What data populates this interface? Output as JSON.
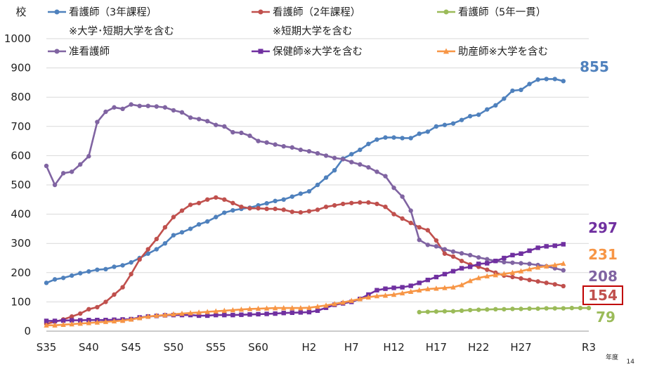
{
  "chart_data": {
    "type": "line",
    "ylabel": "校",
    "xlabel": "年度",
    "page_number": "14",
    "ylim": [
      0,
      1000
    ],
    "ytick_values": [
      0,
      100,
      200,
      300,
      400,
      500,
      600,
      700,
      800,
      900,
      1000
    ],
    "ytick_labels": [
      "0",
      "100",
      "200",
      "300",
      "400",
      "500",
      "600",
      "700",
      "800",
      "900",
      "1000"
    ],
    "xlim": [
      35,
      99
    ],
    "xtick_values": [
      35,
      40,
      45,
      50,
      55,
      60,
      66,
      71,
      76,
      81,
      86,
      91,
      99
    ],
    "xtick_labels": [
      "S35",
      "S40",
      "S45",
      "S50",
      "S55",
      "S60",
      "H2",
      "H7",
      "H12",
      "H17",
      "H22",
      "H27",
      "R3"
    ],
    "grid": "horizontal",
    "legend_position": "top",
    "series": [
      {
        "name": "看護師（3年課程）",
        "name_line2": "※大学･短期大学を含む",
        "color": "#4F81BD",
        "marker": "circle",
        "end_label": "855",
        "x_start": 35,
        "values": [
          165,
          177,
          182,
          190,
          198,
          204,
          210,
          212,
          220,
          225,
          235,
          250,
          265,
          280,
          300,
          328,
          338,
          350,
          365,
          375,
          390,
          405,
          413,
          418,
          422,
          430,
          437,
          445,
          450,
          460,
          470,
          478,
          500,
          525,
          550,
          590,
          605,
          620,
          640,
          655,
          662,
          662,
          660,
          660,
          675,
          682,
          700,
          705,
          710,
          722,
          735,
          740,
          758,
          772,
          795,
          822,
          825,
          845,
          860,
          862,
          862,
          855
        ]
      },
      {
        "name": "看護師（2年課程）",
        "name_line2": "※短期大学を含む",
        "color": "#C0504D",
        "marker": "circle",
        "end_label": "154",
        "x_start": 35,
        "values": [
          25,
          32,
          40,
          50,
          60,
          75,
          82,
          100,
          125,
          150,
          195,
          245,
          280,
          315,
          355,
          390,
          412,
          432,
          438,
          450,
          457,
          450,
          438,
          425,
          420,
          420,
          418,
          418,
          415,
          408,
          406,
          410,
          415,
          425,
          430,
          435,
          438,
          440,
          440,
          435,
          425,
          400,
          385,
          370,
          355,
          345,
          310,
          265,
          255,
          240,
          228,
          220,
          210,
          200,
          190,
          185,
          180,
          175,
          170,
          165,
          160,
          154
        ]
      },
      {
        "name": "看護師（5年一貫）",
        "color": "#9BBB59",
        "marker": "circle",
        "end_label": "79",
        "x_start": 79,
        "values": [
          65,
          66,
          67,
          68,
          68,
          70,
          72,
          73,
          74,
          75,
          75,
          76,
          76,
          77,
          77,
          78,
          78,
          78,
          79,
          79,
          79
        ]
      },
      {
        "name": "准看護師",
        "color": "#8064A2",
        "marker": "circle",
        "end_label": "208",
        "x_start": 35,
        "values": [
          565,
          500,
          540,
          545,
          570,
          598,
          715,
          750,
          765,
          760,
          775,
          770,
          770,
          768,
          765,
          755,
          748,
          730,
          725,
          718,
          705,
          700,
          680,
          678,
          668,
          650,
          645,
          638,
          632,
          628,
          620,
          615,
          608,
          600,
          592,
          588,
          578,
          570,
          560,
          545,
          530,
          490,
          460,
          412,
          312,
          295,
          290,
          280,
          272,
          266,
          260,
          252,
          246,
          240,
          236,
          234,
          232,
          230,
          226,
          222,
          215,
          208
        ]
      },
      {
        "name": "保健師※大学を含む",
        "color": "#7030A0",
        "marker": "square",
        "end_label": "297",
        "x_start": 35,
        "values": [
          35,
          35,
          36,
          37,
          37,
          38,
          38,
          38,
          39,
          40,
          41,
          47,
          50,
          52,
          54,
          55,
          55,
          55,
          53,
          53,
          55,
          55,
          55,
          56,
          57,
          58,
          59,
          60,
          62,
          63,
          64,
          65,
          70,
          80,
          90,
          95,
          100,
          110,
          125,
          140,
          145,
          148,
          150,
          155,
          165,
          175,
          185,
          195,
          205,
          215,
          220,
          230,
          232,
          240,
          250,
          260,
          265,
          275,
          285,
          290,
          292,
          297
        ]
      },
      {
        "name": "助産師※大学を含む",
        "color": "#F79646",
        "marker": "triangle",
        "end_label": "231",
        "x_start": 35,
        "values": [
          20,
          20,
          22,
          24,
          26,
          28,
          30,
          32,
          34,
          36,
          40,
          45,
          50,
          53,
          55,
          58,
          60,
          62,
          64,
          66,
          68,
          70,
          72,
          74,
          76,
          77,
          78,
          79,
          79,
          79,
          79,
          80,
          84,
          88,
          93,
          98,
          104,
          110,
          116,
          120,
          122,
          125,
          130,
          135,
          140,
          144,
          146,
          148,
          150,
          158,
          172,
          182,
          188,
          192,
          196,
          200,
          205,
          212,
          218,
          222,
          226,
          231
        ]
      }
    ]
  }
}
